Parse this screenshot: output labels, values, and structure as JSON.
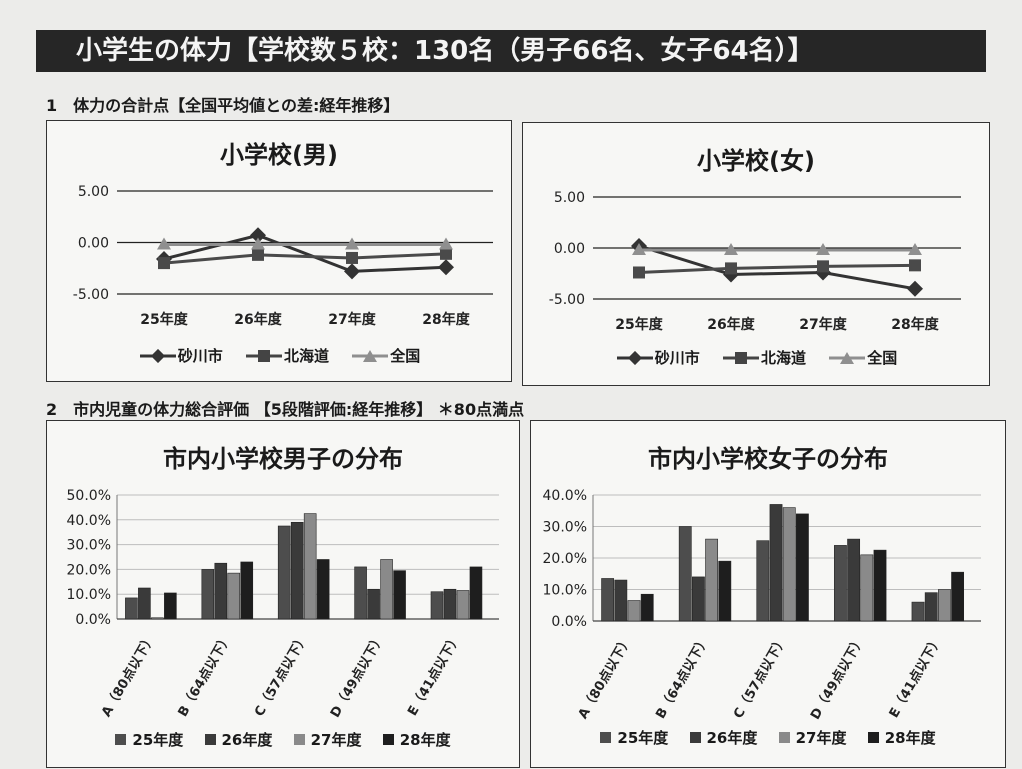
{
  "banner": "小学生の体力【学校数５校：130名（男子66名、女子64名）】",
  "section1_title": "1　体力の合計点【全国平均値との差:経年推移】",
  "section2_title": "2　市内児童の体力総合評価 【5段階評価:経年推移】 ＊80点満点",
  "colors": {
    "s25": "#4d4d4d",
    "s26": "#3a3a3a",
    "s27": "#8a8a8a",
    "s28": "#1e1e1e",
    "sunagawa": "#333333",
    "hokkaido": "#4a4a4a",
    "zenkoku": "#8f8f8f"
  },
  "chart_data": [
    {
      "type": "line",
      "title": "小学校(男)",
      "categories": [
        "25年度",
        "26年度",
        "27年度",
        "28年度"
      ],
      "series": [
        {
          "name": "砂川市",
          "marker": "diamond",
          "values": [
            -1.6,
            0.7,
            -2.8,
            -2.4
          ]
        },
        {
          "name": "北海道",
          "marker": "square",
          "values": [
            -2.0,
            -1.2,
            -1.5,
            -1.1
          ]
        },
        {
          "name": "全国",
          "marker": "triangle",
          "values": [
            -0.2,
            -0.2,
            -0.2,
            -0.2
          ]
        }
      ],
      "yticks": [
        "5.00",
        "0.00",
        "-5.00"
      ],
      "ylim": [
        -5,
        5
      ]
    },
    {
      "type": "line",
      "title": "小学校(女)",
      "categories": [
        "25年度",
        "26年度",
        "27年度",
        "28年度"
      ],
      "series": [
        {
          "name": "砂川市",
          "marker": "diamond",
          "values": [
            0.2,
            -2.6,
            -2.4,
            -4.0
          ]
        },
        {
          "name": "北海道",
          "marker": "square",
          "values": [
            -2.4,
            -2.0,
            -1.8,
            -1.7
          ]
        },
        {
          "name": "全国",
          "marker": "triangle",
          "values": [
            -0.2,
            -0.2,
            -0.2,
            -0.2
          ]
        }
      ],
      "yticks": [
        "5.00",
        "0.00",
        "-5.00"
      ],
      "ylim": [
        -5,
        5
      ]
    },
    {
      "type": "bar",
      "title": "市内小学校男子の分布",
      "categories": [
        "A（80点以下）",
        "B（64点以下）",
        "C（57点以下）",
        "D（49点以下）",
        "E（41点以下）"
      ],
      "series": [
        {
          "name": "25年度",
          "values": [
            8.5,
            20.0,
            37.5,
            21.0,
            11.0
          ]
        },
        {
          "name": "26年度",
          "values": [
            12.5,
            22.5,
            39.0,
            12.0,
            12.0
          ]
        },
        {
          "name": "27年度",
          "values": [
            0.5,
            18.5,
            42.5,
            24.0,
            11.5
          ]
        },
        {
          "name": "28年度",
          "values": [
            10.5,
            23.0,
            24.0,
            19.5,
            21.0
          ]
        }
      ],
      "yticks": [
        "50.0%",
        "40.0%",
        "30.0%",
        "20.0%",
        "10.0%",
        "0.0%"
      ],
      "ylim": [
        0,
        50
      ]
    },
    {
      "type": "bar",
      "title": "市内小学校女子の分布",
      "categories": [
        "A（80点以下）",
        "B（64点以下）",
        "C（57点以下）",
        "D（49点以下）",
        "E（41点以下）"
      ],
      "series": [
        {
          "name": "25年度",
          "values": [
            13.5,
            30.0,
            25.5,
            24.0,
            6.0
          ]
        },
        {
          "name": "26年度",
          "values": [
            13.0,
            14.0,
            37.0,
            26.0,
            9.0
          ]
        },
        {
          "name": "27年度",
          "values": [
            6.5,
            26.0,
            36.0,
            21.0,
            10.0
          ]
        },
        {
          "name": "28年度",
          "values": [
            8.5,
            19.0,
            34.0,
            22.5,
            15.5
          ]
        }
      ],
      "yticks": [
        "40.0%",
        "30.0%",
        "20.0%",
        "10.0%",
        "0.0%"
      ],
      "ylim": [
        0,
        40
      ]
    }
  ]
}
